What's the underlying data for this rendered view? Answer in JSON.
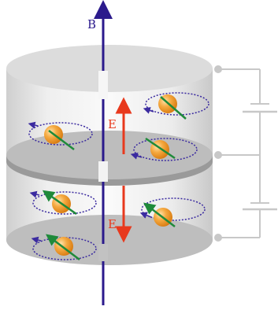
{
  "labels": {
    "magnetic_field": "B",
    "electric_field_upper": "E",
    "electric_field_lower": "E"
  },
  "colors": {
    "axis": "#2b1a8c",
    "e_field": "#e8391d",
    "particle": "#f2a23a",
    "spin_arrow": "#1f8a3a",
    "orbit": "#3b2ba0",
    "cylinder_wall": "#d9d9d9",
    "plate": "#bdbdbd",
    "circuit": "#c8c8c8"
  }
}
